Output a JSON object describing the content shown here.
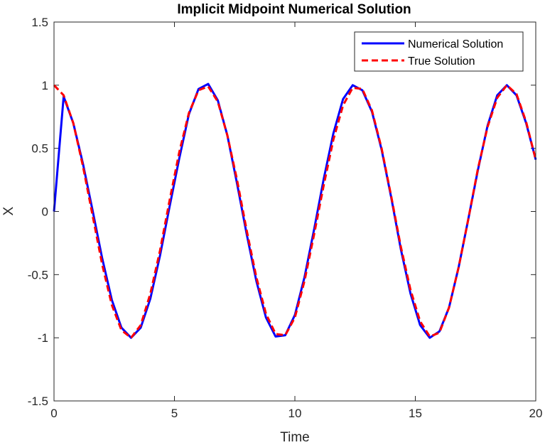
{
  "chart_data": {
    "type": "line",
    "title": "Implicit Midpoint Numerical Solution",
    "xlabel": "Time",
    "ylabel": "X",
    "xlim": [
      0,
      20
    ],
    "ylim": [
      -1.5,
      1.5
    ],
    "xticks": [
      0,
      5,
      10,
      15,
      20
    ],
    "xtick_labels": [
      "0",
      "5",
      "10",
      "15",
      "20"
    ],
    "yticks": [
      -1.5,
      -1,
      -0.5,
      0,
      0.5,
      1,
      1.5
    ],
    "ytick_labels": [
      "-1.5",
      "-1",
      "-0.5",
      "0",
      "0.5",
      "1",
      "1.5"
    ],
    "grid": false,
    "legend_position": "top-right",
    "x": [
      0,
      0.4,
      0.8,
      1.2,
      1.6,
      2.0,
      2.4,
      2.8,
      3.2,
      3.6,
      4.0,
      4.4,
      4.8,
      5.2,
      5.6,
      6.0,
      6.4,
      6.8,
      7.2,
      7.6,
      8.0,
      8.4,
      8.8,
      9.2,
      9.6,
      10.0,
      10.4,
      10.8,
      11.2,
      11.6,
      12.0,
      12.4,
      12.8,
      13.2,
      13.6,
      14.0,
      14.4,
      14.8,
      15.2,
      15.6,
      16.0,
      16.4,
      16.8,
      17.2,
      17.6,
      18.0,
      18.4,
      18.8,
      19.2,
      19.6,
      20.0
    ],
    "series": [
      {
        "name": "Numerical Solution",
        "color": "#0000ff",
        "style": "solid",
        "values": [
          0,
          0.91,
          0.7,
          0.38,
          0.01,
          -0.37,
          -0.7,
          -0.92,
          -1.0,
          -0.92,
          -0.69,
          -0.35,
          0.04,
          0.42,
          0.77,
          0.97,
          1.01,
          0.88,
          0.6,
          0.22,
          -0.18,
          -0.55,
          -0.84,
          -0.99,
          -0.98,
          -0.82,
          -0.52,
          -0.14,
          0.26,
          0.62,
          0.89,
          1.0,
          0.96,
          0.79,
          0.49,
          0.11,
          -0.3,
          -0.65,
          -0.9,
          -1.0,
          -0.95,
          -0.76,
          -0.44,
          -0.06,
          0.33,
          0.68,
          0.92,
          1.0,
          0.92,
          0.7,
          0.41
        ]
      },
      {
        "name": "True Solution",
        "color": "#ff0000",
        "style": "dashed",
        "values": [
          1.0,
          0.92,
          0.7,
          0.36,
          -0.03,
          -0.42,
          -0.74,
          -0.94,
          -1.0,
          -0.9,
          -0.65,
          -0.31,
          0.09,
          0.47,
          0.78,
          0.96,
          0.99,
          0.87,
          0.6,
          0.25,
          -0.15,
          -0.52,
          -0.81,
          -0.97,
          -0.98,
          -0.84,
          -0.55,
          -0.18,
          0.21,
          0.57,
          0.84,
          0.98,
          0.97,
          0.8,
          0.5,
          0.12,
          -0.28,
          -0.62,
          -0.87,
          -0.99,
          -0.96,
          -0.76,
          -0.44,
          -0.06,
          0.34,
          0.67,
          0.9,
          1.0,
          0.93,
          0.71,
          0.41
        ]
      }
    ]
  }
}
